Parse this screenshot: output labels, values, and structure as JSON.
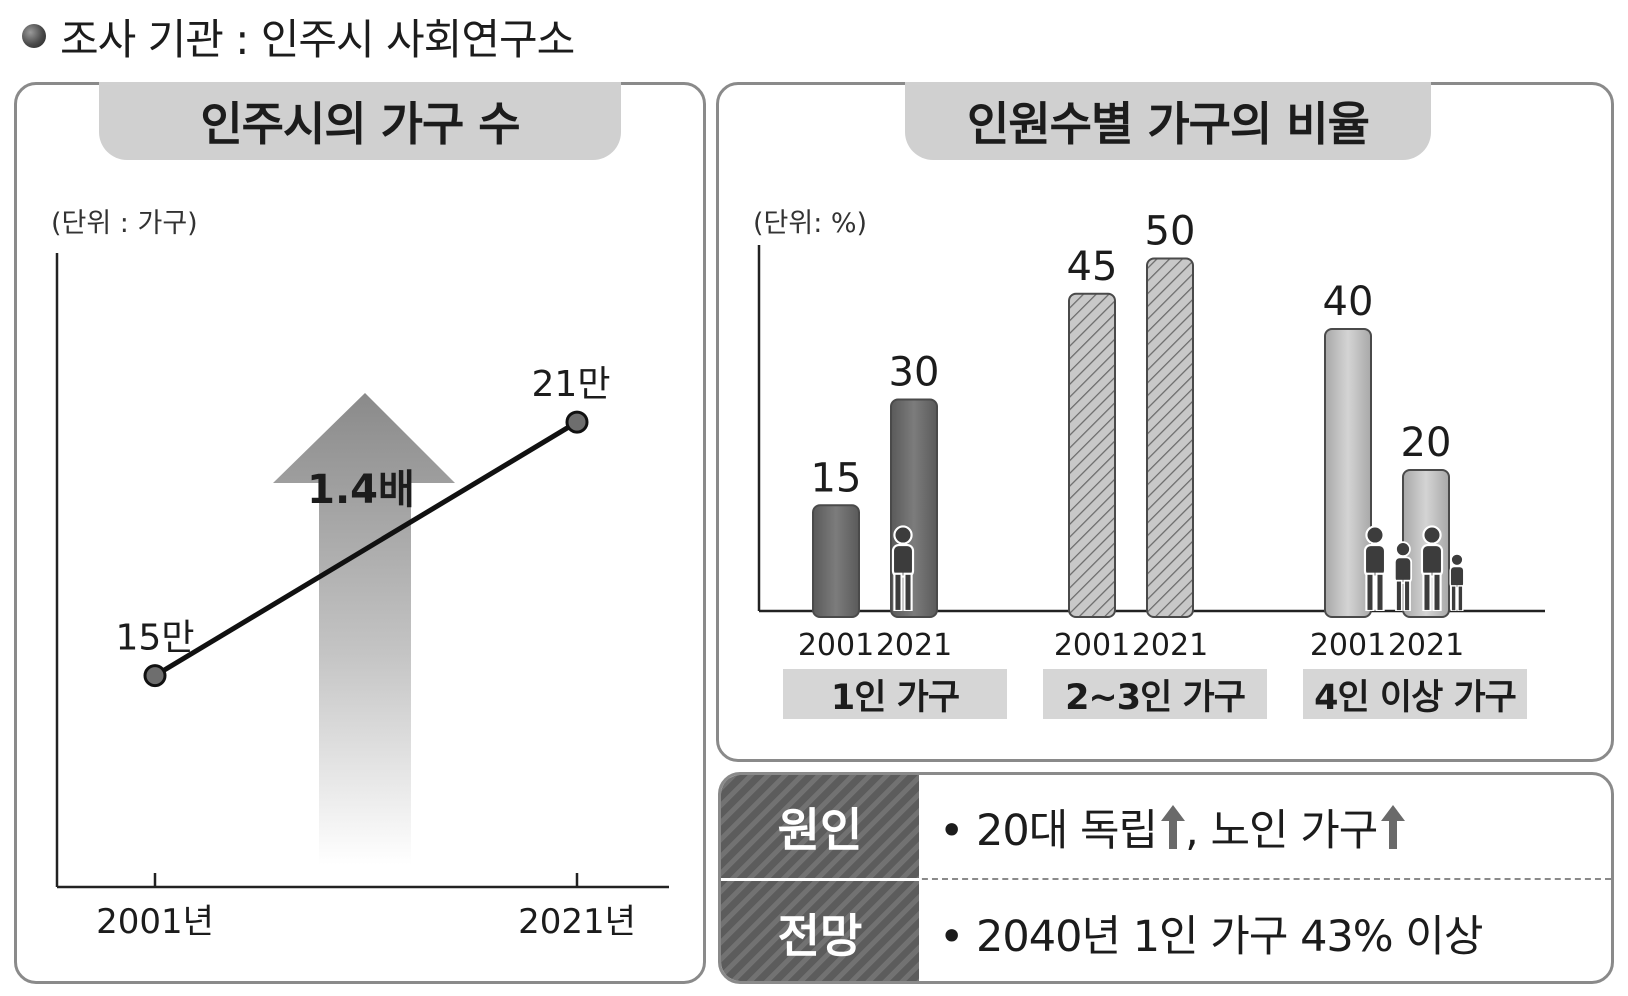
{
  "source": "조사 기관 : 인주시 사회연구소",
  "chart_data": [
    {
      "type": "line",
      "title": "인주시의 가구 수",
      "unit": "(단위 : 가구)",
      "x": [
        "2001년",
        "2021년"
      ],
      "values": [
        150000,
        210000
      ],
      "data_labels": [
        "15만",
        "21만"
      ],
      "annotation": "1.4배"
    },
    {
      "type": "bar",
      "title": "인원수별 가구의 비율",
      "unit": "(단위: %)",
      "groups": [
        {
          "name": "1인 가구",
          "categories": [
            "2001",
            "2021"
          ],
          "values": [
            15,
            30
          ]
        },
        {
          "name": "2~3인 가구",
          "categories": [
            "2001",
            "2021"
          ],
          "values": [
            45,
            50
          ]
        },
        {
          "name": "4인 이상 가구",
          "categories": [
            "2001",
            "2021"
          ],
          "values": [
            40,
            20
          ]
        }
      ],
      "ylim": [
        0,
        55
      ]
    }
  ],
  "info": {
    "cause_label": "원인",
    "cause_text_1": "• 20대 독립",
    "cause_text_2": ", 노인 가구",
    "outlook_label": "전망",
    "outlook_text": "• 2040년 1인 가구 43% 이상"
  }
}
